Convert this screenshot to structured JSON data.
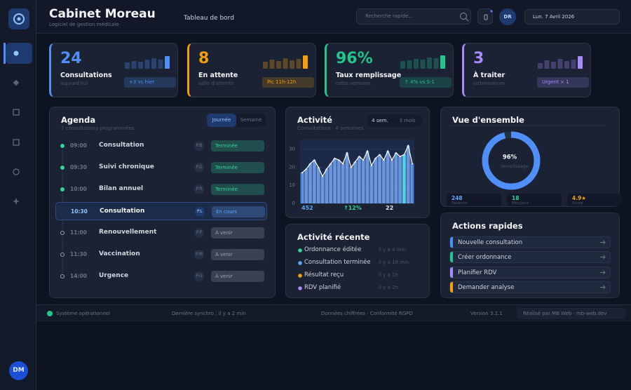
{
  "sidebar": {
    "user_initials": "DM"
  },
  "header": {
    "title": "Cabinet Moreau",
    "subtitle": "Logiciel de gestion médicale",
    "page": "Tableau de bord",
    "search_placeholder": "Recherche rapide...",
    "user_initials": "DR",
    "date": "Lun. 7 Avril 2026"
  },
  "kpis": [
    {
      "value": "24",
      "label": "Consultations",
      "sub": "aujourd'hui",
      "badge": "+3 vs hier",
      "color": "#4f8ff7",
      "spark": [
        9,
        11,
        10,
        13,
        15,
        13,
        18
      ]
    },
    {
      "value": "8",
      "label": "En attente",
      "sub": "salle d'attente",
      "badge": "Pic 11h-12h",
      "color": "#f59e0b",
      "spark": [
        10,
        13,
        11,
        15,
        12,
        14,
        19
      ]
    },
    {
      "value": "96%",
      "label": "Taux remplissage",
      "sub": "cette semaine",
      "badge": "↑ 4% vs S-1",
      "color": "#22c58b",
      "spark": [
        11,
        12,
        14,
        13,
        16,
        15,
        19
      ]
    },
    {
      "value": "3",
      "label": "À traiter",
      "sub": "ordonnances",
      "badge": "Urgent × 1",
      "color": "#a78bfa",
      "spark": [
        8,
        12,
        10,
        14,
        11,
        13,
        18
      ]
    }
  ],
  "agenda": {
    "title": "Agenda",
    "subtitle": "7 consultations programmées",
    "tabs": [
      "Journée",
      "Semaine"
    ],
    "rows": [
      {
        "time": "09:00",
        "type": "Consultation",
        "initials": "P.B",
        "status": "Terminée",
        "color": "#34d399"
      },
      {
        "time": "09:30",
        "type": "Suivi chronique",
        "initials": "P.G",
        "status": "Terminée",
        "color": "#34d399"
      },
      {
        "time": "10:00",
        "type": "Bilan annuel",
        "initials": "P.R",
        "status": "Terminée",
        "color": "#34d399"
      },
      {
        "time": "10:30",
        "type": "Consultation",
        "initials": "P.L",
        "status": "En cours",
        "color": "#60a5fa"
      },
      {
        "time": "11:00",
        "type": "Renouvellement",
        "initials": "P.P",
        "status": "À venir",
        "color": "#94a3b8"
      },
      {
        "time": "11:30",
        "type": "Vaccination",
        "initials": "P.M",
        "status": "À venir",
        "color": "#94a3b8"
      },
      {
        "time": "14:00",
        "type": "Urgence",
        "initials": "P.G",
        "status": "À venir",
        "color": "#94a3b8"
      }
    ]
  },
  "activity": {
    "title": "Activité",
    "subtitle": "Consultations · 4 semaines",
    "tabs": [
      "4 sem.",
      "3 mois"
    ],
    "chart": {
      "ylim": [
        0,
        33
      ],
      "yticks": [
        0,
        10,
        20,
        30
      ],
      "values": [
        17,
        19,
        22,
        24,
        20,
        15,
        19,
        22,
        25,
        24,
        22,
        28,
        20,
        23,
        26,
        24,
        29,
        21,
        25,
        27,
        24,
        29,
        24,
        28,
        26,
        27,
        32,
        22
      ],
      "color": "#4f8ff7",
      "highlight_bar": 25,
      "highlight_color": "#22d3ee"
    },
    "stats": [
      {
        "text": "452",
        "color": "#60a5fa"
      },
      {
        "text": "↑12%",
        "color": "#34d399"
      },
      {
        "text": "22",
        "color": "#e5e7eb"
      }
    ]
  },
  "recent": {
    "title": "Activité récente",
    "items": [
      {
        "text": "Ordonnance éditée",
        "time": "il y a 4 min",
        "color": "#34d399"
      },
      {
        "text": "Consultation terminée",
        "time": "il y a 18 min",
        "color": "#60a5fa"
      },
      {
        "text": "Résultat reçu",
        "time": "il y a 1h",
        "color": "#f59e0b"
      },
      {
        "text": "RDV planifié",
        "time": "il y a 2h",
        "color": "#a78bfa"
      }
    ]
  },
  "overview": {
    "title": "Vue d'ensemble",
    "donut": {
      "value": 96,
      "label": "96%",
      "caption": "remplissage",
      "color": "#4f8ff7"
    },
    "stats": [
      {
        "value": "248",
        "label": "Patients",
        "color": "#60a5fa"
      },
      {
        "value": "18",
        "label": "Moy/jour",
        "color": "#34d399"
      },
      {
        "value": "4.9★",
        "label": "Score",
        "color": "#f59e0b"
      }
    ]
  },
  "actions": {
    "title": "Actions rapides",
    "items": [
      {
        "label": "Nouvelle consultation",
        "color": "#4f8ff7"
      },
      {
        "label": "Créer ordonnance",
        "color": "#22c58b"
      },
      {
        "label": "Planifier RDV",
        "color": "#a78bfa"
      },
      {
        "label": "Demander analyse",
        "color": "#f59e0b"
      }
    ]
  },
  "footer": {
    "status": "Système opérationnel",
    "sync": "Dernière synchro : il y a 2 min",
    "security": "Données chiffrées · Conformité RGPD",
    "version": "Version 3.2.1",
    "credit": "Réalisé par MB Web · mb-web.dev"
  }
}
